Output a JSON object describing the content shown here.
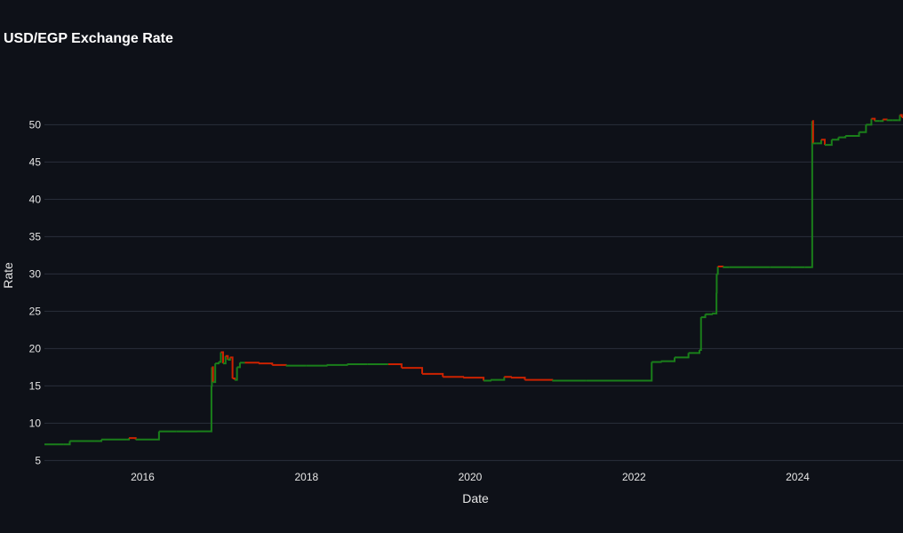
{
  "chart_data": {
    "type": "line",
    "title": "USD/EGP Exchange Rate",
    "xlabel": "Date",
    "ylabel": "Rate",
    "x_range": [
      "2014-10-20",
      "2025-04-15"
    ],
    "ylim": [
      4.8,
      56
    ],
    "yticks": [
      5,
      10,
      15,
      20,
      25,
      30,
      35,
      40,
      45,
      50
    ],
    "xticks": [
      "2016",
      "2018",
      "2020",
      "2022",
      "2024"
    ],
    "grid": true,
    "background_color": "#0e1118",
    "up_color": "#1a7f1a",
    "down_color": "#cc2200",
    "series": [
      {
        "x": [
          "2014-10-20",
          "2015-01-15",
          "2015-02-10",
          "2015-06-01",
          "2015-07-01",
          "2015-10-20",
          "2015-11-01",
          "2015-12-01",
          "2016-03-14",
          "2016-06-01",
          "2016-09-01",
          "2016-11-02",
          "2016-11-03",
          "2016-11-05",
          "2016-11-10",
          "2016-11-20",
          "2016-12-05",
          "2016-12-15",
          "2016-12-25",
          "2017-01-05",
          "2017-01-15",
          "2017-01-25",
          "2017-02-05",
          "2017-02-15",
          "2017-02-25",
          "2017-03-10",
          "2017-04-01",
          "2017-06-01",
          "2017-08-01",
          "2017-10-01",
          "2018-01-01",
          "2018-04-01",
          "2018-07-01",
          "2018-10-01",
          "2019-01-01",
          "2019-03-01",
          "2019-06-01",
          "2019-09-01",
          "2019-12-01",
          "2020-03-01",
          "2020-04-01",
          "2020-06-01",
          "2020-07-01",
          "2020-09-01",
          "2021-01-01",
          "2021-06-01",
          "2021-12-01",
          "2022-03-20",
          "2022-03-21",
          "2022-05-01",
          "2022-07-01",
          "2022-09-01",
          "2022-10-20",
          "2022-10-27",
          "2022-11-15",
          "2022-12-15",
          "2023-01-04",
          "2023-01-05",
          "2023-01-10",
          "2023-02-01",
          "2023-03-01",
          "2023-06-01",
          "2023-09-01",
          "2023-12-01",
          "2024-02-01",
          "2024-03-05",
          "2024-03-06",
          "2024-03-10",
          "2024-03-25",
          "2024-04-15",
          "2024-05-01",
          "2024-06-01",
          "2024-07-01",
          "2024-08-01",
          "2024-09-01",
          "2024-10-01",
          "2024-11-01",
          "2024-11-25",
          "2024-12-10",
          "2025-01-01",
          "2025-01-15",
          "2025-02-01",
          "2025-03-01",
          "2025-03-25",
          "2025-04-01",
          "2025-04-10",
          "2025-04-15"
        ],
        "y": [
          7.15,
          7.15,
          7.6,
          7.6,
          7.8,
          7.8,
          8.0,
          7.8,
          8.9,
          8.9,
          8.9,
          8.9,
          15.0,
          17.5,
          15.5,
          18.0,
          18.2,
          19.5,
          18.0,
          19.0,
          18.5,
          18.8,
          16.0,
          15.8,
          17.5,
          18.1,
          18.1,
          18.0,
          17.8,
          17.7,
          17.7,
          17.8,
          17.9,
          17.9,
          17.9,
          17.4,
          16.6,
          16.2,
          16.1,
          15.7,
          15.8,
          16.2,
          16.1,
          15.8,
          15.7,
          15.7,
          15.7,
          15.7,
          18.2,
          18.3,
          18.8,
          19.4,
          19.8,
          24.2,
          24.6,
          24.7,
          27.5,
          30.0,
          31.0,
          30.9,
          30.9,
          30.9,
          30.9,
          30.9,
          30.9,
          30.9,
          50.5,
          47.5,
          47.5,
          48.0,
          47.3,
          48.0,
          48.3,
          48.5,
          48.5,
          49.0,
          50.0,
          50.8,
          50.5,
          50.5,
          50.7,
          50.6,
          50.6,
          50.6,
          51.3,
          51.0,
          50.9
        ]
      }
    ]
  }
}
